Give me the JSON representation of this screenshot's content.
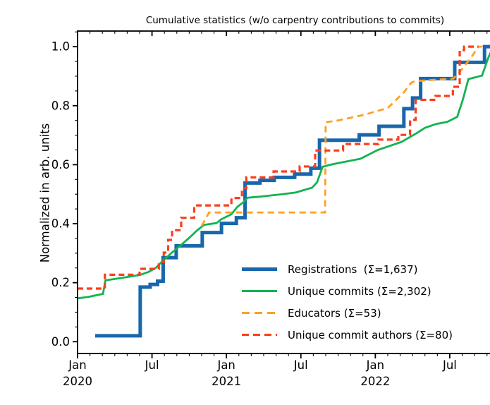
{
  "chart_data": {
    "type": "line",
    "title": "Cumulative statistics (w/o carpentry contributions to commits)",
    "xlabel": "",
    "ylabel": "Normalized in arb. units",
    "grid": false,
    "legend_position": "lower right",
    "x_unit": "months since Jan 2020",
    "x_range": [
      0,
      35.06
    ],
    "y_range": [
      -0.04,
      1.053
    ],
    "x_major_ticks": [
      {
        "m": 0,
        "line1": "Jan",
        "line2": "2020"
      },
      {
        "m": 6,
        "line1": "Jul",
        "line2": ""
      },
      {
        "m": 12,
        "line1": "Jan",
        "line2": "2021"
      },
      {
        "m": 18,
        "line1": "Jul",
        "line2": ""
      },
      {
        "m": 24,
        "line1": "Jan",
        "line2": "2022"
      },
      {
        "m": 30,
        "line1": "Jul",
        "line2": ""
      }
    ],
    "x_minor_step": 1,
    "y_ticks": [
      0.0,
      0.2,
      0.4,
      0.6,
      0.8,
      1.0
    ],
    "y_minor_step": 0.05,
    "series": [
      {
        "name": "Registrations",
        "total": 1637,
        "legend": "Registrations  (Σ=1,637)",
        "color": "#1867ac",
        "width": 5,
        "dash": "",
        "mode": "step",
        "end": 33.5,
        "points": [
          [
            1.42,
            0.02
          ],
          [
            5.05,
            0.185
          ],
          [
            5.85,
            0.194
          ],
          [
            6.45,
            0.205
          ],
          [
            6.9,
            0.285
          ],
          [
            7.95,
            0.325
          ],
          [
            10.05,
            0.37
          ],
          [
            11.6,
            0.401
          ],
          [
            12.8,
            0.42
          ],
          [
            13.5,
            0.538
          ],
          [
            14.7,
            0.547
          ],
          [
            15.85,
            0.557
          ],
          [
            17.5,
            0.568
          ],
          [
            18.8,
            0.588
          ],
          [
            19.5,
            0.683
          ],
          [
            22.7,
            0.701
          ],
          [
            24.3,
            0.73
          ],
          [
            26.3,
            0.79
          ],
          [
            27.0,
            0.826
          ],
          [
            27.65,
            0.892
          ],
          [
            30.4,
            0.947
          ],
          [
            32.8,
            1.0
          ]
        ]
      },
      {
        "name": "Unique commits",
        "total": 2302,
        "legend": "Unique commits (Σ=2,302)",
        "color": "#13b350",
        "width": 2.8,
        "dash": "",
        "mode": "line",
        "end": 34.6,
        "points": [
          [
            0,
            0.147
          ],
          [
            0.9,
            0.152
          ],
          [
            2.05,
            0.162
          ],
          [
            2.25,
            0.208
          ],
          [
            3.5,
            0.216
          ],
          [
            5.0,
            0.226
          ],
          [
            5.7,
            0.236
          ],
          [
            6.3,
            0.25
          ],
          [
            6.9,
            0.275
          ],
          [
            7.6,
            0.302
          ],
          [
            8.3,
            0.326
          ],
          [
            9.0,
            0.352
          ],
          [
            9.6,
            0.376
          ],
          [
            10.2,
            0.396
          ],
          [
            11.2,
            0.402
          ],
          [
            11.55,
            0.414
          ],
          [
            12.4,
            0.432
          ],
          [
            12.9,
            0.458
          ],
          [
            13.35,
            0.472
          ],
          [
            13.7,
            0.488
          ],
          [
            14.8,
            0.492
          ],
          [
            16.5,
            0.5
          ],
          [
            17.6,
            0.506
          ],
          [
            18.9,
            0.522
          ],
          [
            19.3,
            0.54
          ],
          [
            19.75,
            0.593
          ],
          [
            20.4,
            0.6
          ],
          [
            21.2,
            0.607
          ],
          [
            22.8,
            0.62
          ],
          [
            24.2,
            0.65
          ],
          [
            26.1,
            0.677
          ],
          [
            27.3,
            0.706
          ],
          [
            28.0,
            0.725
          ],
          [
            28.9,
            0.738
          ],
          [
            29.8,
            0.745
          ],
          [
            30.6,
            0.762
          ],
          [
            31.05,
            0.82
          ],
          [
            31.5,
            0.89
          ],
          [
            32.6,
            0.902
          ],
          [
            33.1,
            0.962
          ],
          [
            33.5,
            1.0
          ],
          [
            34.6,
            1.0
          ]
        ]
      },
      {
        "name": "Educators",
        "total": 53,
        "legend": "Educators (Σ=53)",
        "color": "#ffa023",
        "width": 2.8,
        "dash": "9,6",
        "mode": "line",
        "end": 32.6,
        "points": [
          [
            10.0,
            0.392
          ],
          [
            10.6,
            0.438
          ],
          [
            19.95,
            0.438
          ],
          [
            20.0,
            0.744
          ],
          [
            21.0,
            0.75
          ],
          [
            23.0,
            0.768
          ],
          [
            25.0,
            0.792
          ],
          [
            26.3,
            0.845
          ],
          [
            26.9,
            0.878
          ],
          [
            27.2,
            0.883
          ],
          [
            28.5,
            0.887
          ],
          [
            30.3,
            0.892
          ],
          [
            31.0,
            0.925
          ],
          [
            31.7,
            0.962
          ],
          [
            32.3,
            1.0
          ],
          [
            32.6,
            1.0
          ]
        ]
      },
      {
        "name": "Unique commit authors",
        "total": 80,
        "legend": "Unique commit authors (Σ=80)",
        "color": "#f93e1c",
        "width": 3.2,
        "dash": "8,5",
        "mode": "step",
        "end": 32.3,
        "points": [
          [
            0,
            0.18
          ],
          [
            2.2,
            0.227
          ],
          [
            5.0,
            0.247
          ],
          [
            6.55,
            0.27
          ],
          [
            6.95,
            0.302
          ],
          [
            7.3,
            0.345
          ],
          [
            7.62,
            0.378
          ],
          [
            8.35,
            0.42
          ],
          [
            9.4,
            0.462
          ],
          [
            12.4,
            0.487
          ],
          [
            13.25,
            0.52
          ],
          [
            13.6,
            0.557
          ],
          [
            15.8,
            0.577
          ],
          [
            17.9,
            0.594
          ],
          [
            19.15,
            0.648
          ],
          [
            21.4,
            0.67
          ],
          [
            24.25,
            0.685
          ],
          [
            25.85,
            0.701
          ],
          [
            26.8,
            0.752
          ],
          [
            27.25,
            0.82
          ],
          [
            28.85,
            0.833
          ],
          [
            30.25,
            0.864
          ],
          [
            30.8,
            0.988
          ],
          [
            31.15,
            1.0
          ]
        ]
      }
    ]
  }
}
